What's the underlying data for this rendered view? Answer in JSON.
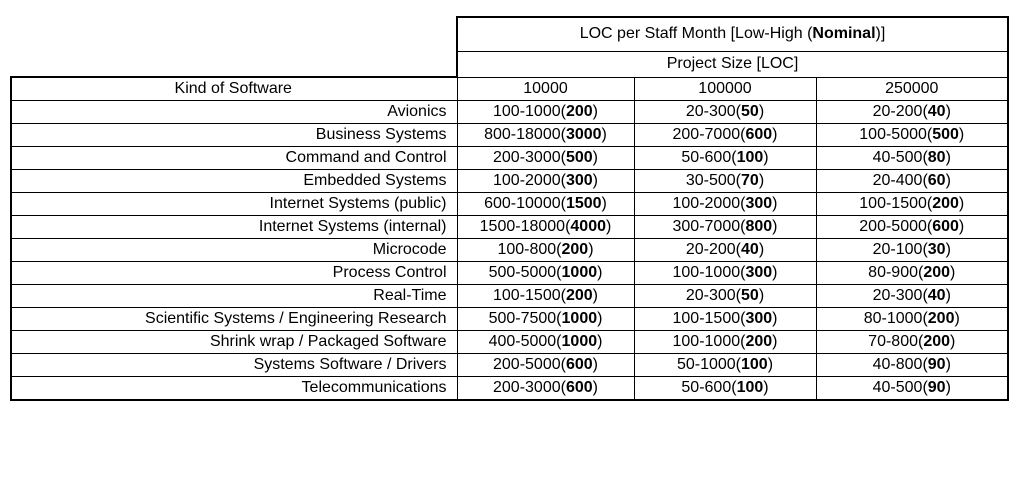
{
  "table": {
    "title": {
      "pre": "LOC per Staff Month [Low-High (",
      "bold": "Nominal",
      "post": ")]"
    },
    "subheader": "Project Size [LOC]",
    "kind_header": "Kind of Software",
    "size_headers": [
      "10000",
      "100000",
      "250000"
    ],
    "rows": [
      {
        "kind": "Avionics",
        "cells": [
          {
            "pre": "100-1000(",
            "bold": "200",
            "post": ")"
          },
          {
            "pre": "20-300(",
            "bold": "50",
            "post": ")"
          },
          {
            "pre": "20-200(",
            "bold": "40",
            "post": ")"
          }
        ]
      },
      {
        "kind": "Business Systems",
        "cells": [
          {
            "pre": "800-18000(",
            "bold": "3000",
            "post": ")"
          },
          {
            "pre": "200-7000(",
            "bold": "600",
            "post": ")"
          },
          {
            "pre": "100-5000(",
            "bold": "500",
            "post": ")"
          }
        ]
      },
      {
        "kind": "Command and Control",
        "cells": [
          {
            "pre": "200-3000(",
            "bold": "500",
            "post": ")"
          },
          {
            "pre": "50-600(",
            "bold": "100",
            "post": ")"
          },
          {
            "pre": "40-500(",
            "bold": "80",
            "post": ")"
          }
        ]
      },
      {
        "kind": "Embedded Systems",
        "cells": [
          {
            "pre": "100-2000(",
            "bold": "300",
            "post": ")"
          },
          {
            "pre": "30-500(",
            "bold": "70",
            "post": ")"
          },
          {
            "pre": "20-400(",
            "bold": "60",
            "post": ")"
          }
        ]
      },
      {
        "kind": "Internet Systems (public)",
        "cells": [
          {
            "pre": "600-10000(",
            "bold": "1500",
            "post": ")"
          },
          {
            "pre": "100-2000(",
            "bold": "300",
            "post": ")"
          },
          {
            "pre": "100-1500(",
            "bold": "200",
            "post": ")"
          }
        ]
      },
      {
        "kind": "Internet Systems (internal)",
        "cells": [
          {
            "pre": "1500-18000(",
            "bold": "4000",
            "post": ")"
          },
          {
            "pre": "300-7000(",
            "bold": "800",
            "post": ")"
          },
          {
            "pre": "200-5000(",
            "bold": "600",
            "post": ")"
          }
        ]
      },
      {
        "kind": "Microcode",
        "cells": [
          {
            "pre": "100-800(",
            "bold": "200",
            "post": ")"
          },
          {
            "pre": "20-200(",
            "bold": "40",
            "post": ")"
          },
          {
            "pre": "20-100(",
            "bold": "30",
            "post": ")"
          }
        ]
      },
      {
        "kind": "Process Control",
        "cells": [
          {
            "pre": "500-5000(",
            "bold": "1000",
            "post": ")"
          },
          {
            "pre": "100-1000(",
            "bold": "300",
            "post": ")"
          },
          {
            "pre": "80-900(",
            "bold": "200",
            "post": ")"
          }
        ]
      },
      {
        "kind": "Real-Time",
        "cells": [
          {
            "pre": "100-1500(",
            "bold": "200",
            "post": ")"
          },
          {
            "pre": "20-300(",
            "bold": "50",
            "post": ")"
          },
          {
            "pre": "20-300(",
            "bold": "40",
            "post": ")"
          }
        ]
      },
      {
        "kind": "Scientific Systems / Engineering Research",
        "cells": [
          {
            "pre": "500-7500(",
            "bold": "1000",
            "post": ")"
          },
          {
            "pre": "100-1500(",
            "bold": "300",
            "post": ")"
          },
          {
            "pre": "80-1000(",
            "bold": "200",
            "post": ")"
          }
        ]
      },
      {
        "kind": "Shrink wrap / Packaged Software",
        "cells": [
          {
            "pre": "400-5000(",
            "bold": "1000",
            "post": ")"
          },
          {
            "pre": "100-1000(",
            "bold": "200",
            "post": ")"
          },
          {
            "pre": "70-800(",
            "bold": "200",
            "post": ")"
          }
        ]
      },
      {
        "kind": "Systems Software / Drivers",
        "cells": [
          {
            "pre": "200-5000(",
            "bold": "600",
            "post": ")"
          },
          {
            "pre": "50-1000(",
            "bold": "100",
            "post": ")"
          },
          {
            "pre": "40-800(",
            "bold": "90",
            "post": ")"
          }
        ]
      },
      {
        "kind": "Telecommunications",
        "cells": [
          {
            "pre": "200-3000(",
            "bold": "600",
            "post": ")"
          },
          {
            "pre": "50-600(",
            "bold": "100",
            "post": ")"
          },
          {
            "pre": "40-500(",
            "bold": "90",
            "post": ")"
          }
        ]
      }
    ]
  }
}
